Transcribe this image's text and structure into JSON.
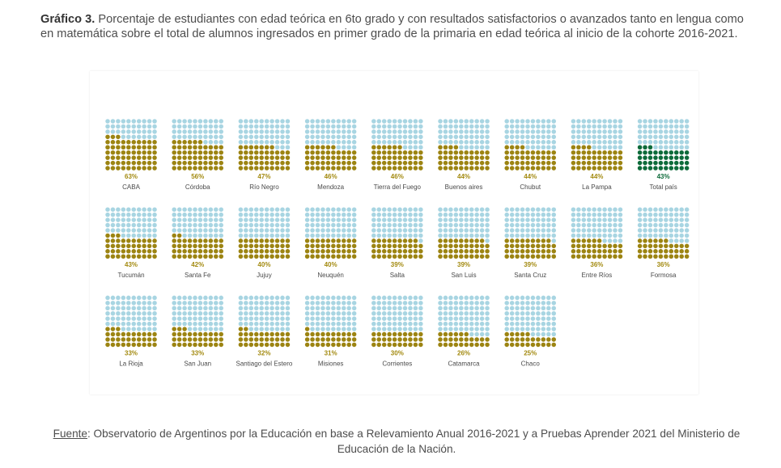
{
  "title": {
    "label": "Gráfico 3.",
    "text": "Porcentaje de estudiantes con edad teórica en 6to grado  y con resultados satisfactorios o avanzados tanto en lengua como en matemática sobre el total de alumnos ingresados en primer grado de la primaria en edad teórica al inicio de la cohorte 2016-2021."
  },
  "footer": {
    "source_label": "Fuente",
    "text": ": Observatorio de Argentinos por la Educación en base a Relevamiento Anual 2016-2021 y a Pruebas Aprender 2021 del Ministerio de Educación de la Nación."
  },
  "colors": {
    "empty_dot": "#a8d5e2",
    "filled_dot": "#9c8412",
    "total_dot": "#0d6b3a",
    "label_pct": "#a38a10",
    "label_total": "#0d6b3a",
    "name_text": "#4a4a4a"
  },
  "chart_data": {
    "type": "waffle",
    "unit": "%",
    "grid": "10x10",
    "items": [
      {
        "name": "CABA",
        "value": 63
      },
      {
        "name": "Córdoba",
        "value": 56
      },
      {
        "name": "Río Negro",
        "value": 47
      },
      {
        "name": "Mendoza",
        "value": 46
      },
      {
        "name": "Tierra del Fuego",
        "value": 46
      },
      {
        "name": "Buenos aires",
        "value": 44
      },
      {
        "name": "Chubut",
        "value": 44
      },
      {
        "name": "La Pampa",
        "value": 44
      },
      {
        "name": "Total país",
        "value": 43,
        "highlight": true
      },
      {
        "name": "Tucumán",
        "value": 43
      },
      {
        "name": "Santa Fe",
        "value": 42
      },
      {
        "name": "Jujuy",
        "value": 40
      },
      {
        "name": "Neuquén",
        "value": 40
      },
      {
        "name": "Salta",
        "value": 39
      },
      {
        "name": "San Luis",
        "value": 39
      },
      {
        "name": "Santa Cruz",
        "value": 39
      },
      {
        "name": "Entre Ríos",
        "value": 36
      },
      {
        "name": "Formosa",
        "value": 36
      },
      {
        "name": "La Rioja",
        "value": 33
      },
      {
        "name": "San Juan",
        "value": 33
      },
      {
        "name": "Santiago del Estero",
        "value": 32
      },
      {
        "name": "Misiones",
        "value": 31
      },
      {
        "name": "Corrientes",
        "value": 30
      },
      {
        "name": "Catamarca",
        "value": 26
      },
      {
        "name": "Chaco",
        "value": 25
      }
    ]
  }
}
